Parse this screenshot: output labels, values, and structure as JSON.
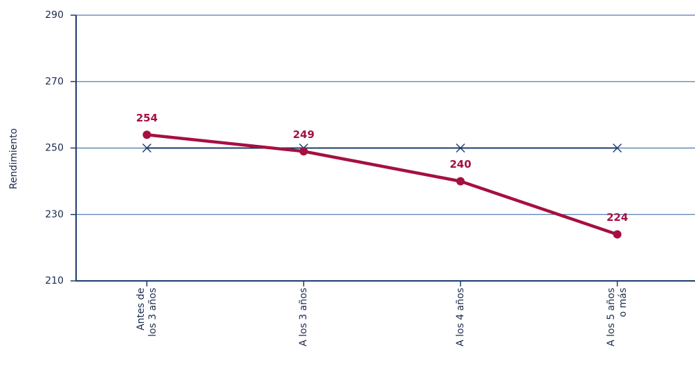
{
  "chart_data": {
    "type": "line",
    "y_label": "Rendimiento",
    "categories": [
      [
        "Antes de",
        "los 3 años"
      ],
      [
        "A los 3 años"
      ],
      [
        "A los 4 años"
      ],
      [
        "A los 5 años",
        "o más"
      ]
    ],
    "series": [
      {
        "color": "#a5103f",
        "values": [
          254,
          249,
          240,
          224
        ],
        "marker": "circle",
        "labels": true
      },
      {
        "color": "#1b3a6e",
        "values": [
          250,
          250,
          250,
          250
        ],
        "marker": "x",
        "labels": false
      }
    ],
    "ylim": [
      210,
      290
    ],
    "yticks": [
      210,
      230,
      250,
      270,
      290
    ],
    "grid": true
  }
}
